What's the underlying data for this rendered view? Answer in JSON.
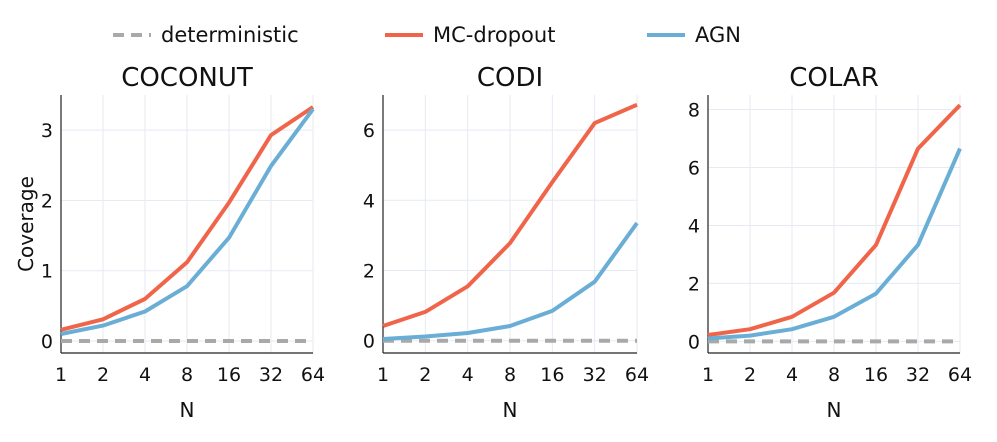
{
  "legend": [
    {
      "label": "deterministic",
      "color": "#a9a9a9",
      "dash": true
    },
    {
      "label": "MC-dropout",
      "color": "#f0654a",
      "dash": false
    },
    {
      "label": "AGN",
      "color": "#6aaed6",
      "dash": false
    }
  ],
  "chart_data": [
    {
      "type": "line",
      "title": "COCONUT",
      "xlabel": "N",
      "ylabel": "Coverage",
      "x": [
        1,
        2,
        4,
        8,
        16,
        32,
        64
      ],
      "x_scale": "log2",
      "xtick_labels": [
        "1",
        "2",
        "4",
        "8",
        "16",
        "32",
        "64"
      ],
      "ylim": [
        -0.17,
        3.5
      ],
      "yticks": [
        0,
        1,
        2,
        3
      ],
      "series": [
        {
          "name": "deterministic",
          "values": [
            0,
            0,
            0,
            0,
            0,
            0,
            0
          ]
        },
        {
          "name": "MC-dropout",
          "values": [
            0.16,
            0.31,
            0.6,
            1.12,
            1.97,
            2.93,
            3.33
          ]
        },
        {
          "name": "AGN",
          "values": [
            0.1,
            0.22,
            0.42,
            0.78,
            1.47,
            2.49,
            3.3
          ]
        }
      ]
    },
    {
      "type": "line",
      "title": "CODI",
      "xlabel": "N",
      "ylabel": "",
      "x": [
        1,
        2,
        4,
        8,
        16,
        32,
        64
      ],
      "x_scale": "log2",
      "xtick_labels": [
        "1",
        "2",
        "4",
        "8",
        "16",
        "32",
        "64"
      ],
      "ylim": [
        -0.35,
        7.0
      ],
      "yticks": [
        0,
        2,
        4,
        6
      ],
      "series": [
        {
          "name": "deterministic",
          "values": [
            0,
            0,
            0,
            0,
            0,
            0,
            0
          ]
        },
        {
          "name": "MC-dropout",
          "values": [
            0.42,
            0.82,
            1.55,
            2.78,
            4.52,
            6.2,
            6.72
          ]
        },
        {
          "name": "AGN",
          "values": [
            0.05,
            0.12,
            0.22,
            0.42,
            0.85,
            1.68,
            3.35
          ]
        }
      ]
    },
    {
      "type": "line",
      "title": "COLAR",
      "xlabel": "N",
      "ylabel": "",
      "x": [
        1,
        2,
        4,
        8,
        16,
        32,
        64
      ],
      "x_scale": "log2",
      "xtick_labels": [
        "1",
        "2",
        "4",
        "8",
        "16",
        "32",
        "64"
      ],
      "ylim": [
        -0.4,
        8.5
      ],
      "yticks": [
        0,
        2,
        4,
        6,
        8
      ],
      "series": [
        {
          "name": "deterministic",
          "values": [
            0,
            0,
            0,
            0,
            0,
            0,
            0
          ]
        },
        {
          "name": "MC-dropout",
          "values": [
            0.22,
            0.42,
            0.85,
            1.68,
            3.33,
            6.65,
            8.15
          ]
        },
        {
          "name": "AGN",
          "values": [
            0.1,
            0.2,
            0.42,
            0.85,
            1.65,
            3.33,
            6.65
          ]
        }
      ]
    }
  ]
}
